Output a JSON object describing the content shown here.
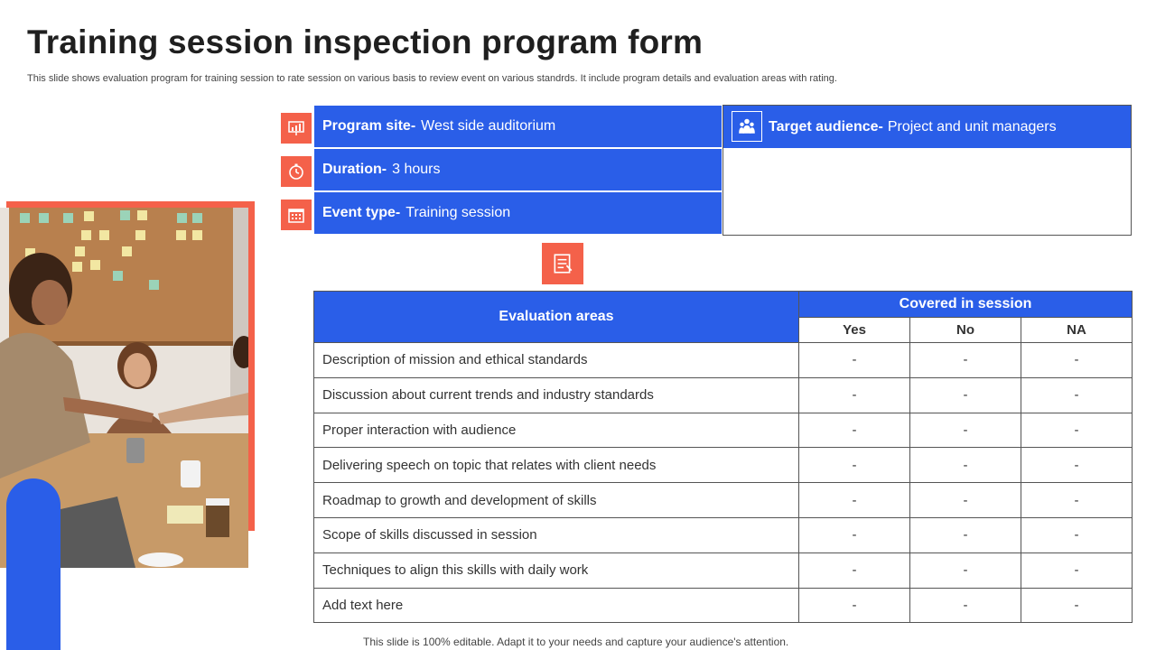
{
  "header": {
    "title": "Training session inspection program form",
    "subtitle": "This slide shows evaluation program for training session to rate session on various basis to review event on various standrds. It include program details and evaluation areas with rating."
  },
  "program": {
    "site_key": "Program site-",
    "site_value": "West side auditorium",
    "duration_key": "Duration-",
    "duration_value": "3 hours",
    "event_key": "Event type-",
    "event_value": "Training session",
    "audience_key": "Target audience-",
    "audience_value": "Project and unit managers"
  },
  "icons": {
    "site": "presentation-icon",
    "duration": "clock-icon",
    "event": "calendar-icon",
    "audience": "group-icon",
    "evaluation": "checklist-icon"
  },
  "table": {
    "areas_header": "Evaluation areas",
    "covered_header": "Covered in session",
    "col_yes": "Yes",
    "col_no": "No",
    "col_na": "NA",
    "rows": [
      {
        "area": "Description of mission and ethical standards",
        "yes": "-",
        "no": "-",
        "na": "-"
      },
      {
        "area": "Discussion about current trends and industry standards",
        "yes": "-",
        "no": "-",
        "na": "-"
      },
      {
        "area": "Proper interaction with audience",
        "yes": "-",
        "no": "-",
        "na": "-"
      },
      {
        "area": "Delivering speech on topic that relates with client needs",
        "yes": "-",
        "no": "-",
        "na": "-"
      },
      {
        "area": "Roadmap to growth and development of skills",
        "yes": "-",
        "no": "-",
        "na": "-"
      },
      {
        "area": "Scope of skills discussed in session",
        "yes": "-",
        "no": "-",
        "na": "-"
      },
      {
        "area": "Techniques to align this skills with daily work",
        "yes": "-",
        "no": "-",
        "na": "-"
      },
      {
        "area": "Add text here",
        "yes": "-",
        "no": "-",
        "na": "-"
      }
    ]
  },
  "footer": "This slide is 100% editable. Adapt it to your needs and capture your audience's attention.",
  "colors": {
    "accent_blue": "#2a5ee8",
    "accent_coral": "#f4614a"
  }
}
